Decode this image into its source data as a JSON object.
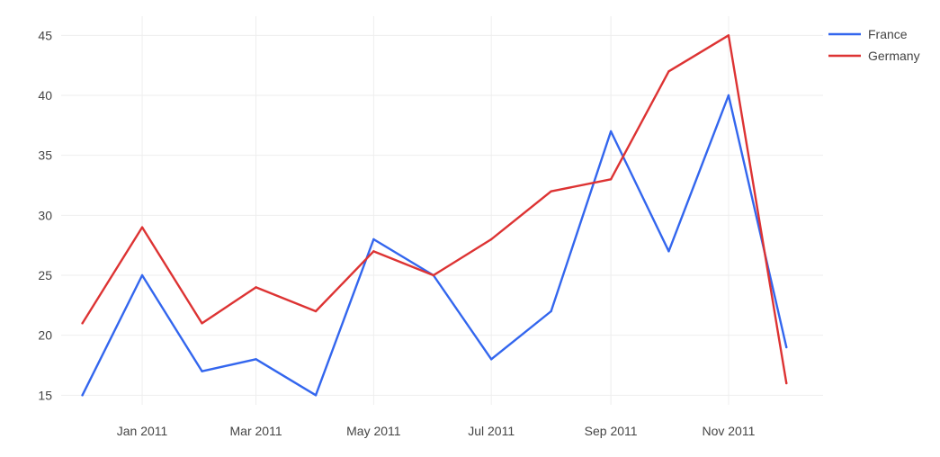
{
  "chart_data": {
    "type": "line",
    "title": "",
    "xlabel": "",
    "ylabel": "",
    "x": [
      "2010-12-01",
      "2011-01-01",
      "2011-02-01",
      "2011-03-01",
      "2011-04-01",
      "2011-05-01",
      "2011-06-01",
      "2011-07-01",
      "2011-08-01",
      "2011-09-01",
      "2011-10-01",
      "2011-11-01",
      "2011-12-01"
    ],
    "xlim": [
      "2010-11-20",
      "2011-12-20"
    ],
    "x_ticks": [
      {
        "date": "2011-01-01",
        "label": "Jan 2011"
      },
      {
        "date": "2011-03-01",
        "label": "Mar 2011"
      },
      {
        "date": "2011-05-01",
        "label": "May 2011"
      },
      {
        "date": "2011-07-01",
        "label": "Jul 2011"
      },
      {
        "date": "2011-09-01",
        "label": "Sep 2011"
      },
      {
        "date": "2011-11-01",
        "label": "Nov 2011"
      }
    ],
    "ylim": [
      14.2,
      46.6
    ],
    "y_ticks": [
      15,
      20,
      25,
      30,
      35,
      40,
      45
    ],
    "grid": true,
    "legend_position": "top-right",
    "series": [
      {
        "name": "France",
        "color": "#3366ee",
        "values": [
          15,
          25,
          17,
          18,
          15,
          28,
          25,
          18,
          22,
          37,
          27,
          40,
          19
        ]
      },
      {
        "name": "Germany",
        "color": "#dd3333",
        "values": [
          21,
          29,
          21,
          24,
          22,
          27,
          25,
          28,
          32,
          33,
          42,
          45,
          16
        ]
      }
    ]
  }
}
